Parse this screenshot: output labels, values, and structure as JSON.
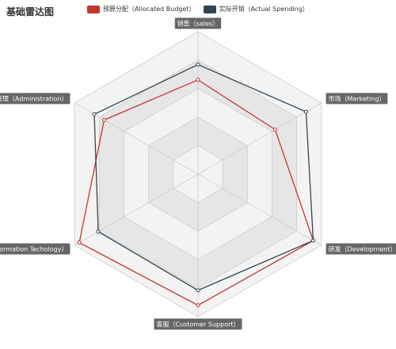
{
  "chart_data": {
    "type": "radar",
    "title": "基础雷达图",
    "indicators": [
      {
        "name": "销售（sales）",
        "max": 6500
      },
      {
        "name": "市场（Marketing）",
        "max": 16000
      },
      {
        "name": "研发（Development）",
        "max": 30000
      },
      {
        "name": "客服（Customer Support）",
        "max": 38000
      },
      {
        "name": "信息技术（Information Techology）",
        "max": 52000
      },
      {
        "name": "管理（Administration）",
        "max": 25000
      }
    ],
    "series": [
      {
        "name": "预算分配（Allocated Budget）",
        "color": "#c23531",
        "values": [
          4300,
          10000,
          28000,
          35000,
          50000,
          19000
        ]
      },
      {
        "name": "实际开销（Actual Spending）",
        "color": "#2f4554",
        "values": [
          5000,
          14000,
          28000,
          31000,
          42000,
          21000
        ]
      }
    ],
    "legend_position": "top"
  }
}
